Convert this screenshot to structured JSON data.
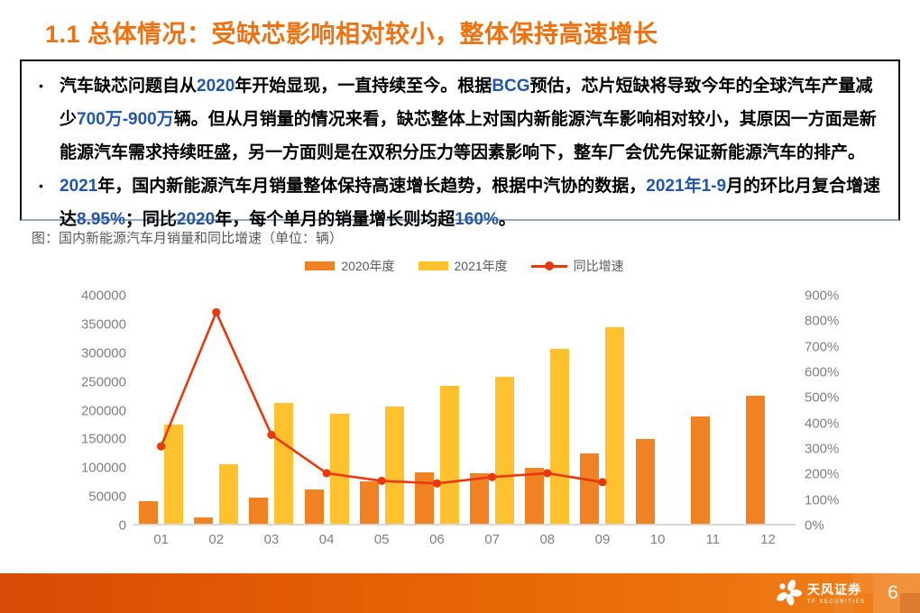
{
  "slide": {
    "title": "1.1 总体情况：受缺芯影响相对较小，整体保持高速增长"
  },
  "text_box": {
    "bullet_marker": "•",
    "bullets": [
      {
        "segments": [
          {
            "t": "汽车缺芯问题自从",
            "c": "k"
          },
          {
            "t": "2020",
            "c": "b"
          },
          {
            "t": "年开始显现，一直持续至今。根据",
            "c": "k"
          },
          {
            "t": "BCG",
            "c": "b"
          },
          {
            "t": "预估，芯片短缺将导致今年的全球汽车产量减少",
            "c": "k"
          },
          {
            "t": "700万-900万",
            "c": "b"
          },
          {
            "t": "辆。但从月销量的情况来看，缺芯整体上对国内新能源汽车影响相对较小，其原因一方面是新能源汽车需求持续旺盛，另一方面则是在双积分压力等因素影响下，整车厂会优先保证新能源汽车的排产。",
            "c": "k"
          }
        ]
      },
      {
        "segments": [
          {
            "t": "2021",
            "c": "b"
          },
          {
            "t": "年，国内新能源汽车月销量整体保持高速增长趋势，根据中汽协的数据，",
            "c": "k"
          },
          {
            "t": "2021年1-9",
            "c": "b"
          },
          {
            "t": "月的环比月复合增速达",
            "c": "k"
          },
          {
            "t": "8.95%",
            "c": "b"
          },
          {
            "t": "；同比",
            "c": "k"
          },
          {
            "t": "2020",
            "c": "b"
          },
          {
            "t": "年，每个单月的销量增长则均超",
            "c": "k"
          },
          {
            "t": "160%",
            "c": "b"
          },
          {
            "t": "。",
            "c": "k"
          }
        ]
      }
    ]
  },
  "chart": {
    "caption": "图：国内新能源汽车月销量和同比增速（单位：辆）"
  },
  "chart_data": {
    "type": "bar",
    "title": "国内新能源汽车月销量和同比增速（单位：辆）",
    "categories": [
      "01",
      "02",
      "03",
      "04",
      "05",
      "06",
      "07",
      "08",
      "09",
      "10",
      "11",
      "12"
    ],
    "series": [
      {
        "name": "2020年度",
        "type": "bar",
        "color": "#f08223",
        "values": [
          40000,
          11000,
          46000,
          60000,
          73000,
          90000,
          88000,
          98000,
          122000,
          148000,
          186000,
          222000
        ]
      },
      {
        "name": "2021年度",
        "type": "bar",
        "color": "#ffc12e",
        "values": [
          172000,
          104000,
          210000,
          192000,
          204000,
          240000,
          255000,
          305000,
          342000,
          null,
          null,
          null
        ]
      },
      {
        "name": "同比增速",
        "type": "line",
        "color": "#e8380d",
        "axis": "right",
        "unit": "%",
        "values": [
          310,
          835,
          355,
          205,
          175,
          165,
          190,
          205,
          170,
          null,
          null,
          null
        ]
      }
    ],
    "left_axis": {
      "min": 0,
      "max": 400000,
      "step": 50000,
      "ticks": [
        "400000",
        "350000",
        "300000",
        "250000",
        "200000",
        "150000",
        "100000",
        "50000",
        "0"
      ]
    },
    "right_axis": {
      "min": 0,
      "max": 900,
      "step": 100,
      "ticks": [
        "900%",
        "800%",
        "700%",
        "600%",
        "500%",
        "400%",
        "300%",
        "200%",
        "100%",
        "0%"
      ]
    },
    "legend_position": "top",
    "grid": false
  },
  "footer": {
    "brand_cn": "天风证券",
    "brand_en": "TF SECURITIES",
    "page_number": "6"
  },
  "colors": {
    "title_orange": "#ee7112",
    "number_blue": "#2355a8",
    "bar_2020": "#f08223",
    "bar_2021": "#ffc12e",
    "line_red": "#e8380d",
    "axis_gray": "#7f7f7f",
    "caption_gray": "#595959",
    "footer_orange_dark": "#d84a06",
    "footer_orange_light": "#f0811c"
  }
}
